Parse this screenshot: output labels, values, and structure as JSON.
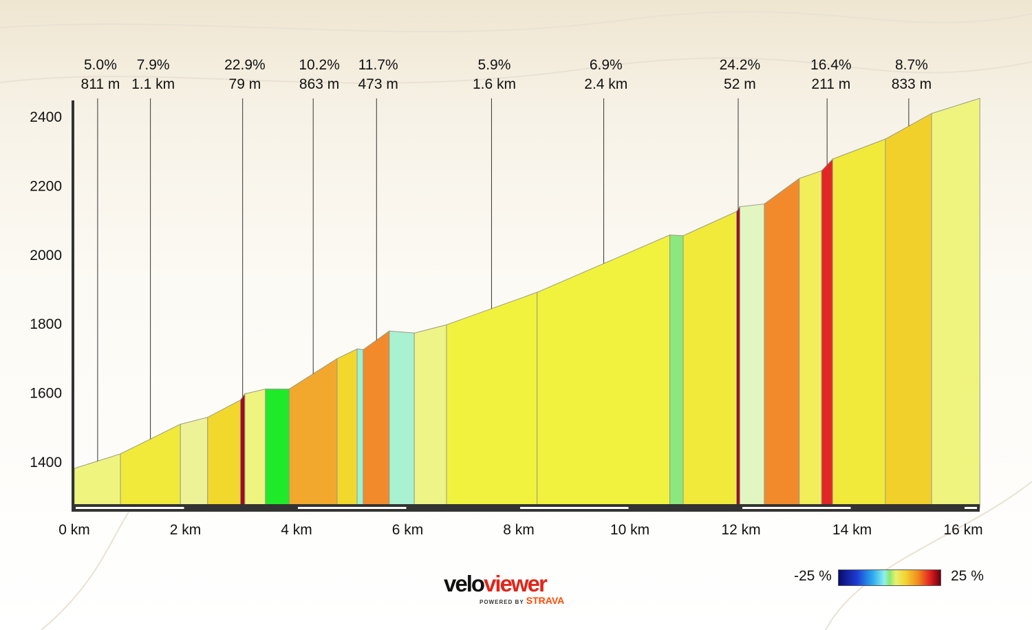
{
  "chart_data": {
    "type": "area",
    "title": "",
    "xlabel": "",
    "ylabel": "",
    "xlim": [
      0,
      16.3
    ],
    "ylim": [
      1272,
      2460
    ],
    "x_ticks": [
      {
        "value": 0,
        "label": "0 km"
      },
      {
        "value": 2,
        "label": "2 km"
      },
      {
        "value": 4,
        "label": "4 km"
      },
      {
        "value": 6,
        "label": "6 km"
      },
      {
        "value": 8,
        "label": "8 km"
      },
      {
        "value": 10,
        "label": "10 km"
      },
      {
        "value": 12,
        "label": "12 km"
      },
      {
        "value": 14,
        "label": "14 km"
      },
      {
        "value": 16,
        "label": "16 km"
      }
    ],
    "y_ticks": [
      {
        "value": 1400,
        "label": "1400"
      },
      {
        "value": 1600,
        "label": "1600"
      },
      {
        "value": 1800,
        "label": "1800"
      },
      {
        "value": 2000,
        "label": "2000"
      },
      {
        "value": 2200,
        "label": "2200"
      },
      {
        "value": 2400,
        "label": "2400"
      }
    ],
    "segments": [
      {
        "x0": 0.0,
        "x1": 0.83,
        "e0": 1380,
        "e1": 1422,
        "color": "#eef47e"
      },
      {
        "x0": 0.83,
        "x1": 1.91,
        "e0": 1422,
        "e1": 1508,
        "color": "#f1ea3a"
      },
      {
        "x0": 1.91,
        "x1": 2.4,
        "e0": 1508,
        "e1": 1528,
        "color": "#eef296"
      },
      {
        "x0": 2.4,
        "x1": 2.99,
        "e0": 1528,
        "e1": 1578,
        "color": "#f2d82c"
      },
      {
        "x0": 2.99,
        "x1": 3.07,
        "e0": 1578,
        "e1": 1596,
        "color": "#a00c1c"
      },
      {
        "x0": 3.07,
        "x1": 3.44,
        "e0": 1596,
        "e1": 1610,
        "color": "#eef47e"
      },
      {
        "x0": 3.44,
        "x1": 3.87,
        "e0": 1610,
        "e1": 1610,
        "color": "#1eea2a"
      },
      {
        "x0": 3.87,
        "x1": 4.73,
        "e0": 1610,
        "e1": 1698,
        "color": "#f2a82c"
      },
      {
        "x0": 4.73,
        "x1": 5.09,
        "e0": 1698,
        "e1": 1726,
        "color": "#f2d82c"
      },
      {
        "x0": 5.09,
        "x1": 5.2,
        "e0": 1726,
        "e1": 1724,
        "color": "#9ef2d2"
      },
      {
        "x0": 5.2,
        "x1": 5.67,
        "e0": 1724,
        "e1": 1778,
        "color": "#f28a2c"
      },
      {
        "x0": 5.67,
        "x1": 6.12,
        "e0": 1778,
        "e1": 1772,
        "color": "#a8f2d2"
      },
      {
        "x0": 6.12,
        "x1": 6.7,
        "e0": 1772,
        "e1": 1796,
        "color": "#eef486"
      },
      {
        "x0": 6.7,
        "x1": 8.33,
        "e0": 1796,
        "e1": 1890,
        "color": "#f1f23e"
      },
      {
        "x0": 8.33,
        "x1": 10.72,
        "e0": 1890,
        "e1": 2056,
        "color": "#f1f23e"
      },
      {
        "x0": 10.72,
        "x1": 10.96,
        "e0": 2056,
        "e1": 2054,
        "color": "#8ae87e"
      },
      {
        "x0": 10.96,
        "x1": 11.92,
        "e0": 2054,
        "e1": 2124,
        "color": "#f1ea3a"
      },
      {
        "x0": 11.92,
        "x1": 11.98,
        "e0": 2124,
        "e1": 2138,
        "color": "#a00c1c"
      },
      {
        "x0": 11.98,
        "x1": 12.42,
        "e0": 2138,
        "e1": 2146,
        "color": "#e2f6c2"
      },
      {
        "x0": 12.42,
        "x1": 13.05,
        "e0": 2146,
        "e1": 2220,
        "color": "#f28a2c"
      },
      {
        "x0": 13.05,
        "x1": 13.45,
        "e0": 2220,
        "e1": 2242,
        "color": "#f1ee5a"
      },
      {
        "x0": 13.45,
        "x1": 13.65,
        "e0": 2242,
        "e1": 2276,
        "color": "#e22626"
      },
      {
        "x0": 13.65,
        "x1": 14.6,
        "e0": 2276,
        "e1": 2334,
        "color": "#f1ea3a"
      },
      {
        "x0": 14.6,
        "x1": 15.43,
        "e0": 2334,
        "e1": 2408,
        "color": "#f2d02c"
      },
      {
        "x0": 15.43,
        "x1": 16.3,
        "e0": 2408,
        "e1": 2452,
        "color": "#eef47e"
      }
    ],
    "annotations": [
      {
        "x": 0.42,
        "x_label": 0.47,
        "grade": "5.0%",
        "length": "811 m"
      },
      {
        "x": 1.37,
        "x_label": 1.42,
        "grade": "7.9%",
        "length": "1.1 km"
      },
      {
        "x": 3.03,
        "x_label": 3.07,
        "grade": "22.9%",
        "length": "79 m"
      },
      {
        "x": 4.3,
        "x_label": 4.41,
        "grade": "10.2%",
        "length": "863 m"
      },
      {
        "x": 5.44,
        "x_label": 5.47,
        "grade": "11.7%",
        "length": "473 m"
      },
      {
        "x": 7.51,
        "x_label": 7.56,
        "grade": "5.9%",
        "length": "1.6 km"
      },
      {
        "x": 9.53,
        "x_label": 9.57,
        "grade": "6.9%",
        "length": "2.4 km"
      },
      {
        "x": 11.95,
        "x_label": 11.98,
        "grade": "24.2%",
        "length": "52 m"
      },
      {
        "x": 13.55,
        "x_label": 13.62,
        "grade": "16.4%",
        "length": "211 m"
      },
      {
        "x": 15.02,
        "x_label": 15.07,
        "grade": "8.7%",
        "length": "833 m"
      }
    ],
    "grid": false
  },
  "legend": {
    "min_label": "-25 %",
    "max_label": "25 %"
  },
  "logo": {
    "velo": "velo",
    "viewer": "viewer",
    "powered_by": "POWERED BY",
    "strava": "STRAVA"
  }
}
